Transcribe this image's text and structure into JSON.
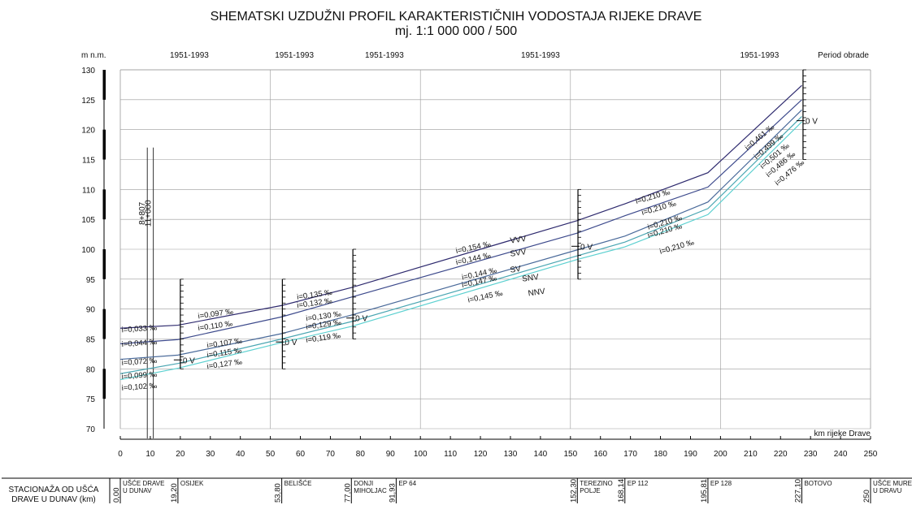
{
  "title": "SHEMATSKI UZDUŽNI PROFIL KARAKTERISTIČNIH VODOSTAJA RIJEKE DRAVE",
  "subtitle": "mj. 1:1 000 000 / 500",
  "y_axis_label": "m n.m.",
  "x_axis_label": "km rijeke Drave",
  "period_label": "Period obrade",
  "periods": [
    "1951-1993",
    "1951-1993",
    "1951-1993",
    "1951-1993",
    "1951-1993"
  ],
  "station_header": [
    "STACIONAŽA OD UŠĆA",
    "DRAVE U DUNAV (km)"
  ],
  "colors": {
    "vvv": "#2e2a6e",
    "svv": "#3d4a8c",
    "sv": "#4a6a9a",
    "snv": "#4aa6b2",
    "nnv": "#5cd0d0",
    "grid": "#9a9a9a"
  },
  "chart_data": {
    "type": "line",
    "xlim": [
      0,
      250
    ],
    "ylim": [
      70,
      130
    ],
    "x_ticks": [
      "0",
      "10",
      "20",
      "30",
      "40",
      "50",
      "60",
      "70",
      "80",
      "90",
      "100",
      "110",
      "120",
      "130",
      "140",
      "150",
      "160",
      "170",
      "180",
      "190",
      "200",
      "210",
      "220",
      "230",
      "240",
      "250"
    ],
    "y_ticks": [
      "70",
      "75",
      "80",
      "85",
      "90",
      "95",
      "100",
      "105",
      "110",
      "115",
      "120",
      "125",
      "130"
    ],
    "x": [
      0,
      19.2,
      53.8,
      77,
      152.3,
      168.14,
      195.81,
      227.1
    ],
    "series": [
      {
        "name": "VVV",
        "values": [
          86.8,
          87.3,
          90.6,
          93.6,
          104.8,
          107.6,
          112.8,
          127.4
        ]
      },
      {
        "name": "SVV",
        "values": [
          84.2,
          84.9,
          88.7,
          92.0,
          102.7,
          105.6,
          110.4,
          125.0
        ]
      },
      {
        "name": "SV",
        "values": [
          81.6,
          82.3,
          85.9,
          89.0,
          99.9,
          102.2,
          107.9,
          123.3
        ]
      },
      {
        "name": "SNV",
        "values": [
          79.2,
          80.9,
          85.0,
          87.9,
          98.9,
          101.2,
          106.8,
          122.2
        ]
      },
      {
        "name": "NNV",
        "values": [
          78.2,
          80.1,
          84.4,
          87.1,
          98.3,
          100.4,
          105.8,
          121.3
        ]
      }
    ],
    "slope_labels": [
      {
        "text": "i=0,033 ‰",
        "x": 0.5,
        "y": 86.1
      },
      {
        "text": "i=0,044 ‰",
        "x": 0.5,
        "y": 83.7
      },
      {
        "text": "i=0,072 ‰",
        "x": 0.5,
        "y": 80.6
      },
      {
        "text": "i=0,099 ‰",
        "x": 0.5,
        "y": 78.3
      },
      {
        "text": "i=0,102 ‰",
        "x": 0.5,
        "y": 76.4
      },
      {
        "text": "i=0,097 ‰",
        "x": 26,
        "y": 88.4
      },
      {
        "text": "i=0,110 ‰",
        "x": 26,
        "y": 86.4
      },
      {
        "text": "i=0,107 ‰",
        "x": 29,
        "y": 83.5
      },
      {
        "text": "i=0,115 ‰",
        "x": 29,
        "y": 81.9
      },
      {
        "text": "i=0,127 ‰",
        "x": 29,
        "y": 80.0
      },
      {
        "text": "i=0,135 ‰",
        "x": 59,
        "y": 91.6
      },
      {
        "text": "i=0,132 ‰",
        "x": 59,
        "y": 90.2
      },
      {
        "text": "i=0,130 ‰",
        "x": 62,
        "y": 88.0
      },
      {
        "text": "i=0,129 ‰",
        "x": 62,
        "y": 86.6
      },
      {
        "text": "i=0,119 ‰",
        "x": 62,
        "y": 84.4
      },
      {
        "text": "i=0,154 ‰",
        "x": 112,
        "y": 99.3
      },
      {
        "text": "i=0,144 ‰",
        "x": 112,
        "y": 97.4
      },
      {
        "text": "i=0,144 ‰",
        "x": 114,
        "y": 94.9
      },
      {
        "text": "i=0,147 ‰",
        "x": 114,
        "y": 93.6
      },
      {
        "text": "i=0,145 ‰",
        "x": 116,
        "y": 91.1
      },
      {
        "text": "i=0,210 ‰",
        "x": 172,
        "y": 107.6
      },
      {
        "text": "i=0,210 ‰",
        "x": 174,
        "y": 105.7
      },
      {
        "text": "i=0,210 ‰",
        "x": 176,
        "y": 103.3
      },
      {
        "text": "i=0,210 ‰",
        "x": 176,
        "y": 101.9
      },
      {
        "text": "i=0,210 ‰",
        "x": 180,
        "y": 99.2
      },
      {
        "text": "i=0,461 ‰",
        "x": 209,
        "y": 116.5
      },
      {
        "text": "i=0,499 ‰",
        "x": 212,
        "y": 115.0
      },
      {
        "text": "i=0,501 ‰",
        "x": 214,
        "y": 113.4
      },
      {
        "text": "i=0,486 ‰",
        "x": 216,
        "y": 112.0
      },
      {
        "text": "i=0,476 ‰",
        "x": 219,
        "y": 110.6
      }
    ],
    "level_labels": [
      {
        "text": "VVV",
        "x": 130,
        "y": 101.0
      },
      {
        "text": "SVV",
        "x": 130,
        "y": 98.8
      },
      {
        "text": "SV",
        "x": 130,
        "y": 96.1
      },
      {
        "text": "SNV",
        "x": 134,
        "y": 94.6
      },
      {
        "text": "NNV",
        "x": 136,
        "y": 92.2
      }
    ],
    "gauges": [
      {
        "x": 20,
        "y_min": 80,
        "y_max": 95,
        "zero_level": 81.5,
        "zero_label": "0 V"
      },
      {
        "x": 54,
        "y_min": 80,
        "y_max": 95,
        "zero_level": 84.5,
        "zero_label": "0 V"
      },
      {
        "x": 77.5,
        "y_min": 85,
        "y_max": 100,
        "zero_level": 88.5,
        "zero_label": "0 V"
      },
      {
        "x": 152.5,
        "y_min": 95,
        "y_max": 110,
        "zero_level": 100.5,
        "zero_label": "0 V"
      },
      {
        "x": 227.5,
        "y_min": 115,
        "y_max": 130,
        "zero_level": 121.5,
        "zero_label": "0 V"
      }
    ],
    "bridges": [
      {
        "x": 9,
        "y_top": 117,
        "label": "8+807"
      },
      {
        "x": 11,
        "y_top": 117,
        "label": "11+000"
      }
    ],
    "period_positions": [
      23,
      58,
      88,
      140,
      213
    ],
    "sections": [
      50,
      100,
      150,
      200
    ]
  },
  "stations": [
    {
      "km": "0,00",
      "name": [
        "UŠĆE DRAVE",
        "U DUNAV"
      ],
      "x": 0
    },
    {
      "km": "19,20",
      "name": [
        "OSIJEK"
      ],
      "x": 19.2
    },
    {
      "km": "53,80",
      "name": [
        "BELIŠĆE"
      ],
      "x": 53.8
    },
    {
      "km": "77,00",
      "name": [
        "DONJI",
        "MIHOLJAC"
      ],
      "x": 77
    },
    {
      "km": "91,93",
      "name": [
        "EP 64"
      ],
      "x": 91.93
    },
    {
      "km": "152,30",
      "name": [
        "TEREZINO",
        "POLJE"
      ],
      "x": 152.3
    },
    {
      "km": "168,14",
      "name": [
        "EP 112"
      ],
      "x": 168.14
    },
    {
      "km": "195,81",
      "name": [
        "EP 128"
      ],
      "x": 195.81
    },
    {
      "km": "227,10",
      "name": [
        "BOTOVO"
      ],
      "x": 227.1
    },
    {
      "km": "250",
      "name": [
        "UŠĆE MURE",
        "U DRAVU"
      ],
      "x": 250
    }
  ]
}
